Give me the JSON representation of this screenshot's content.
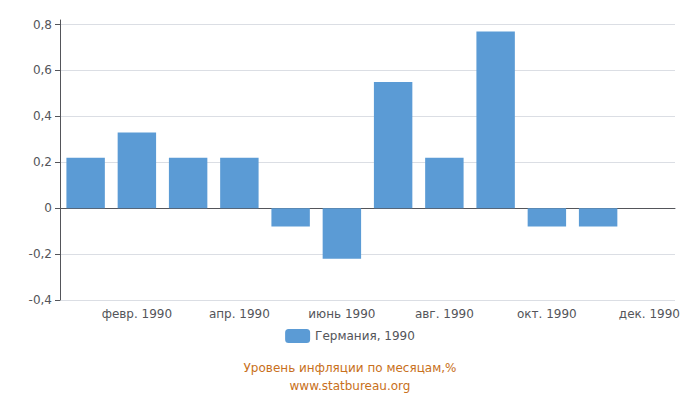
{
  "chart_data": {
    "type": "bar",
    "categories": [
      null,
      "февр. 1990",
      null,
      "апр. 1990",
      null,
      "июнь 1990",
      null,
      "авг. 1990",
      null,
      "окт. 1990",
      null,
      "дек. 1990"
    ],
    "series": [
      {
        "name": "Германия, 1990",
        "color": "#5b9bd5",
        "values": [
          0.22,
          0.33,
          0.22,
          0.22,
          -0.08,
          -0.22,
          0.55,
          0.22,
          0.77,
          -0.08,
          -0.08,
          0.0
        ]
      }
    ],
    "ylim": [
      -0.4,
      0.82
    ],
    "yticks": [
      {
        "value": -0.4,
        "label": "-0,4"
      },
      {
        "value": -0.2,
        "label": "-0,2"
      },
      0,
      {
        "value": 0.2,
        "label": "0,2"
      },
      {
        "value": 0.4,
        "label": "0,4"
      },
      {
        "value": 0.6,
        "label": "0,6"
      },
      {
        "value": 0.8,
        "label": "0,8"
      }
    ],
    "grid": true,
    "legend": "bottom",
    "annotations": [
      {
        "text": "Уровень инфляции по месяцам,%",
        "color": "#c87020"
      },
      {
        "text": "www.statbureau.org",
        "color": "#c87020"
      }
    ]
  }
}
